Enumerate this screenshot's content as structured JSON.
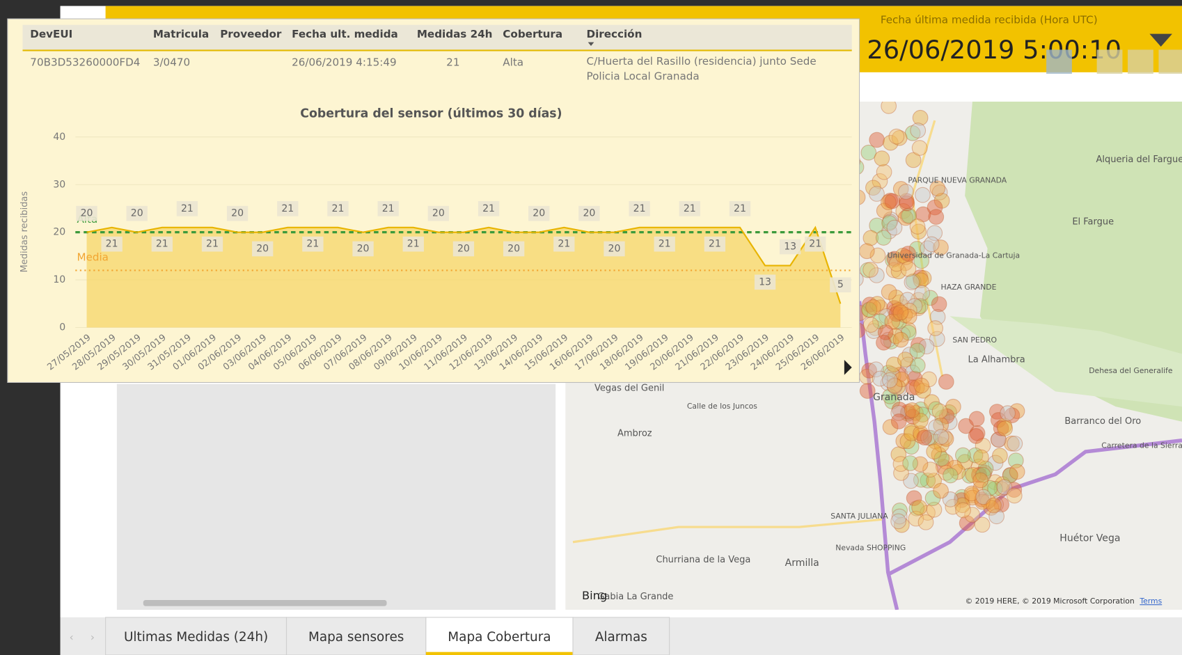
{
  "header": {
    "last_measure_label": "Fecha última medida recibida (Hora UTC)",
    "last_measure_value": "26/06/2019 5:00:10"
  },
  "table": {
    "columns": [
      "DevEUI",
      "Matricula",
      "Proveedor",
      "Fecha ult. medida",
      "Medidas 24h",
      "Cobertura",
      "Dirección"
    ],
    "rows": [
      [
        "70B3D53260000FD4",
        "3/0470",
        null,
        "26/06/2019 4:15:49",
        "21",
        "Alta",
        "C/Huerta del Rasillo (residencia) junto Sede Policia Local Granada"
      ]
    ]
  },
  "chart_data": {
    "type": "area",
    "title": "Cobertura del sensor (últimos 30 días)",
    "y_label": "Medidas recibidas",
    "categories": [
      "27/05/2019",
      "28/05/2019",
      "29/05/2019",
      "30/05/2019",
      "31/05/2019",
      "01/06/2019",
      "02/06/2019",
      "03/06/2019",
      "04/06/2019",
      "05/06/2019",
      "06/06/2019",
      "07/06/2019",
      "08/06/2019",
      "09/06/2019",
      "10/06/2019",
      "11/06/2019",
      "12/06/2019",
      "13/06/2019",
      "14/06/2019",
      "15/06/2019",
      "16/06/2019",
      "17/06/2019",
      "18/06/2019",
      "19/06/2019",
      "20/06/2019",
      "21/06/2019",
      "22/06/2019",
      "23/06/2019",
      "24/06/2019",
      "25/06/2019",
      "26/06/2019"
    ],
    "values": [
      20,
      21,
      20,
      21,
      21,
      21,
      20,
      20,
      21,
      21,
      21,
      20,
      21,
      21,
      20,
      20,
      21,
      20,
      20,
      21,
      20,
      20,
      21,
      21,
      21,
      21,
      21,
      13,
      13,
      21,
      5
    ],
    "color": "#e8b400",
    "fill": "#f5d56a",
    "ylim": [
      0,
      40
    ],
    "yticks": [
      0,
      10,
      20,
      30,
      40
    ],
    "grid": true,
    "reference_lines": [
      {
        "label": "Alta",
        "value": 20,
        "color": "#3b9a3b"
      },
      {
        "label": "Media",
        "value": 12,
        "color": "#f2a531"
      }
    ]
  },
  "map": {
    "labels": [
      "Alqueria del Fargue",
      "El Fargue",
      "PARQUE NUEVA GRANADA",
      "Universidad de Granada-La Cartuja",
      "HAZA GRANDE",
      "SAN PEDRO",
      "La Alhambra",
      "Dehesa del Generalife",
      "Vegas del Genil",
      "Ambroz",
      "Granada",
      "Barranco del Oro",
      "Carretera de la Sierra",
      "SANTA JULIANA",
      "Nevada SHOPPING",
      "Huétor Vega",
      "Churriana de la Vega",
      "Armilla",
      "Gabia La Grande",
      "Calle de los Juncos"
    ],
    "attribution": "© 2019 HERE, © 2019 Microsoft Corporation",
    "terms": "Terms",
    "provider": "Bing"
  },
  "tabs": [
    "Ultimas Medidas (24h)",
    "Mapa sensores",
    "Mapa Cobertura",
    "Alarmas"
  ]
}
